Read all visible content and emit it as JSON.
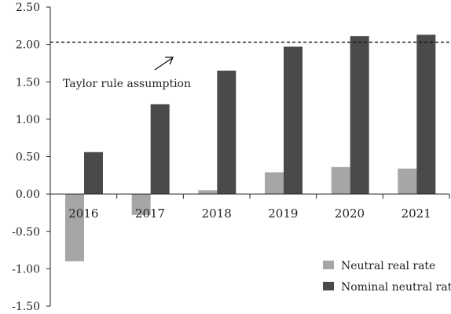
{
  "chart_data": {
    "type": "bar",
    "title": "",
    "xlabel": "",
    "ylabel": "",
    "categories": [
      "2016",
      "2017",
      "2018",
      "2019",
      "2020",
      "2021"
    ],
    "series": [
      {
        "name": "Neutral real rate",
        "color": "#a6a6a6",
        "values": [
          -0.9,
          -0.28,
          0.05,
          0.29,
          0.36,
          0.34
        ]
      },
      {
        "name": "Nominal neutral rate",
        "color": "#4a4a4a",
        "values": [
          0.56,
          1.2,
          1.65,
          1.97,
          2.11,
          2.13
        ]
      }
    ],
    "ylim": [
      -1.5,
      2.5
    ],
    "yticks": [
      "2.50",
      "2.00",
      "1.50",
      "1.00",
      "0.50",
      "0.00",
      "-0.50",
      "-1.00",
      "-1.50"
    ],
    "grid": false,
    "legend_position": "bottom-right",
    "reference_line": {
      "value": 2.03,
      "style": "dashed"
    },
    "annotation": {
      "text": "Taylor rule assumption"
    }
  }
}
